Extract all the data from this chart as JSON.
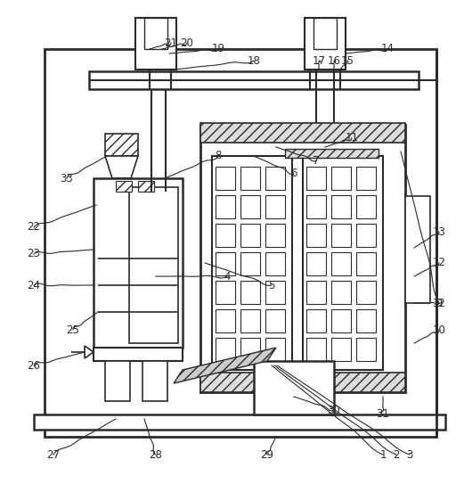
{
  "bg_color": "#ffffff",
  "line_color": "#2a2a2a",
  "fig_width": 5.12,
  "fig_height": 5.43,
  "label_fontsize": 8.5
}
